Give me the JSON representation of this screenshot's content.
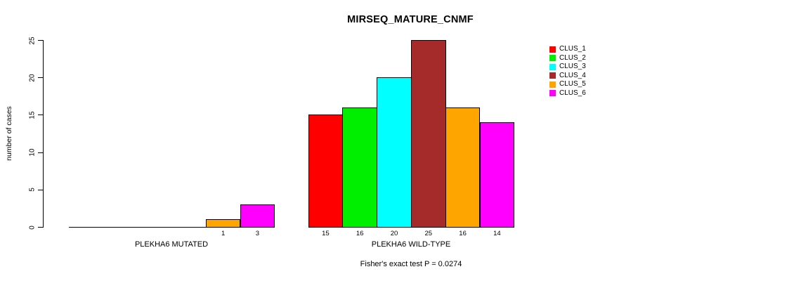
{
  "chart_data": {
    "type": "bar",
    "title": "MIRSEQ_MATURE_CNMF",
    "ylabel": "number of cases",
    "xlabel": "",
    "ylim": [
      0,
      25
    ],
    "yticks": [
      0,
      5,
      10,
      15,
      20,
      25
    ],
    "grid": false,
    "caption": "Fisher's exact test P = 0.0274",
    "clusters": [
      {
        "label": "CLUS_1",
        "color": "#FF0000"
      },
      {
        "label": "CLUS_2",
        "color": "#00EE00"
      },
      {
        "label": "CLUS_3",
        "color": "#00FFFF"
      },
      {
        "label": "CLUS_4",
        "color": "#A52A2A"
      },
      {
        "label": "CLUS_5",
        "color": "#FFA500"
      },
      {
        "label": "CLUS_6",
        "color": "#FF00FF"
      }
    ],
    "legend": {
      "position": "right",
      "entries": [
        "CLUS_1",
        "CLUS_2",
        "CLUS_3",
        "CLUS_4",
        "CLUS_5",
        "CLUS_6"
      ]
    },
    "groups": [
      {
        "label": "PLEKHA6 MUTATED",
        "values": [
          0,
          0,
          0,
          0,
          1,
          3
        ],
        "bar_labels": [
          "",
          "",
          "",
          "",
          "1",
          "3"
        ]
      },
      {
        "label": "PLEKHA6 WILD-TYPE",
        "values": [
          15,
          16,
          20,
          25,
          16,
          14
        ],
        "bar_labels": [
          "15",
          "16",
          "20",
          "25",
          "16",
          "14"
        ]
      }
    ]
  }
}
